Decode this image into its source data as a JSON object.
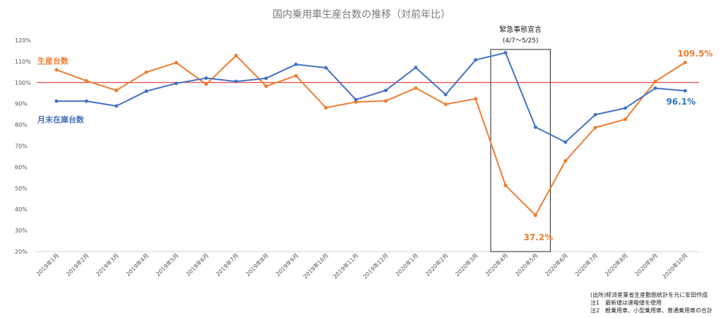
{
  "chart_data": {
    "type": "line",
    "title": "国内乗用車生産台数の推移（対前年比）",
    "categories": [
      "2019年1月",
      "2019年2月",
      "2019年3月",
      "2019年4月",
      "2019年5月",
      "2019年6月",
      "2019年7月",
      "2019年8月",
      "2019年9月",
      "2019年10月",
      "2019年11月",
      "2019年12月",
      "2020年1月",
      "2020年2月",
      "2020年3月",
      "2020年4月",
      "2020年5月",
      "2020年6月",
      "2020年7月",
      "2020年8月",
      "2020年9月",
      "2020年10月"
    ],
    "y_ticks": [
      "20%",
      "30%",
      "40%",
      "50%",
      "60%",
      "70%",
      "80%",
      "90%",
      "100%",
      "110%",
      "120%"
    ],
    "ylim": [
      20,
      120
    ],
    "reference_line": 100,
    "series": [
      {
        "name": "生産台数",
        "color": "#ED7D31",
        "values": [
          106,
          100.8,
          96.3,
          104.9,
          109.4,
          99.2,
          112.8,
          98.3,
          103.2,
          88.1,
          90.8,
          91.3,
          97.4,
          89.7,
          92.3,
          51.3,
          37.2,
          62.9,
          78.7,
          82.6,
          100.5,
          109.5
        ]
      },
      {
        "name": "月末在庫台数",
        "color": "#4472C4",
        "values": [
          91.2,
          91.2,
          88.9,
          95.9,
          99.6,
          102.1,
          100.5,
          102.0,
          108.6,
          107.0,
          91.9,
          96.3,
          107.1,
          94.3,
          110.7,
          114.1,
          78.9,
          71.8,
          84.8,
          87.9,
          97.3,
          96.1
        ]
      }
    ],
    "annotations": {
      "emergency_title": "緊急事態宣言",
      "emergency_period": "(4/7〜5/25)",
      "prod_last": "109.5%",
      "stock_last": "96.1%",
      "prod_min": "37.2%"
    }
  },
  "notes": [
    "(出所)経済産業省生産動態統計を元に安田作成",
    "注1　最新値は速報値を使用",
    "注2　軽乗用車、小型乗用車、普通乗用車の合計"
  ]
}
